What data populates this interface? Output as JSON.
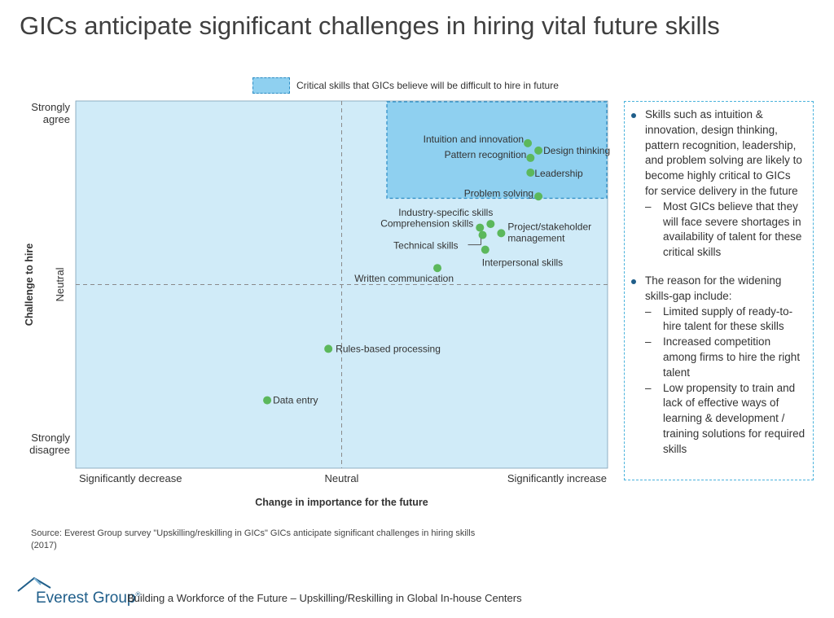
{
  "title": "GICs anticipate significant challenges in hiring vital future skills",
  "legend": {
    "label": "Critical skills that GICs believe will be difficult to hire in future"
  },
  "colors": {
    "quadrant_bg": "#d0ebf8",
    "highlight_bg": "#8fd0f0",
    "point": "#5cb85c",
    "accent": "#1f5e8a"
  },
  "chart_data": {
    "type": "scatter",
    "xlabel": "Change in importance for the future",
    "ylabel": "Challenge to hire",
    "x_ticks": [
      "Significantly decrease",
      "Neutral",
      "Significantly increase"
    ],
    "y_ticks": [
      "Strongly agree",
      "Neutral",
      "Strongly disagree"
    ],
    "xlim": [
      -1,
      1
    ],
    "ylim": [
      -1,
      1
    ],
    "highlight_region": {
      "x": [
        0.17,
        1.0
      ],
      "y": [
        0.47,
        1.0
      ],
      "label": "Critical skills that GICs believe will be difficult to hire in future"
    },
    "points": [
      {
        "label": "Intuition and innovation",
        "x": 0.7,
        "y": 0.77
      },
      {
        "label": "Design thinking",
        "x": 0.74,
        "y": 0.73
      },
      {
        "label": "Pattern recognition",
        "x": 0.71,
        "y": 0.69
      },
      {
        "label": "Leadership",
        "x": 0.71,
        "y": 0.61
      },
      {
        "label": "Problem solving",
        "x": 0.74,
        "y": 0.48
      },
      {
        "label": "Industry-specific skills",
        "x": 0.56,
        "y": 0.33
      },
      {
        "label": "Comprehension skills",
        "x": 0.52,
        "y": 0.31
      },
      {
        "label": "Project/stakeholder management",
        "x": 0.6,
        "y": 0.28
      },
      {
        "label": "Technical skills",
        "x": 0.53,
        "y": 0.27
      },
      {
        "label": "Interpersonal skills",
        "x": 0.54,
        "y": 0.19
      },
      {
        "label": "Written communication",
        "x": 0.36,
        "y": 0.09
      },
      {
        "label": "Rules-based processing",
        "x": -0.05,
        "y": -0.35
      },
      {
        "label": "Data entry",
        "x": -0.28,
        "y": -0.63
      }
    ]
  },
  "notes": {
    "bullets": [
      {
        "text": "Skills such as intuition & innovation, design thinking, pattern recognition, leadership, and problem solving are likely to become highly critical to GICs for service delivery in the future",
        "subs": [
          "Most GICs believe that they will face severe shortages in availability of talent for these critical skills"
        ]
      },
      {
        "text": "The reason for the widening skills-gap include:",
        "subs": [
          "Limited supply of ready-to-hire talent for these skills",
          "Increased competition among firms to hire the right talent",
          "Low propensity to train and lack of effective ways of learning & development / training solutions for required skills"
        ]
      }
    ]
  },
  "source": "Source: Everest Group survey \"Upskilling/reskilling in GICs\" GICs anticipate significant challenges in hiring skills (2017)",
  "footer": {
    "brand": "Everest Group",
    "registered": "®",
    "tagline": "Building a Workforce of the Future – Upskilling/Reskilling in Global In-house Centers"
  }
}
